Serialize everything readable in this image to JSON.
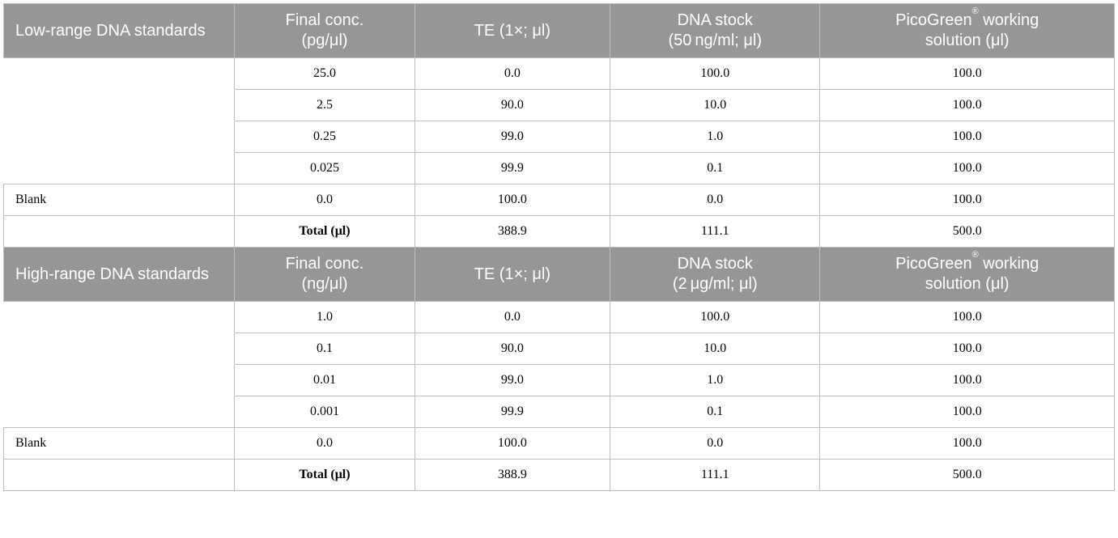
{
  "colors": {
    "header_bg": "#969696",
    "header_text": "#ffffff",
    "body_text": "#000000",
    "border": "#bdbdbd",
    "row_bg": "#ffffff"
  },
  "typography": {
    "header_font": "sans-serif light",
    "header_fontsize_pt": 15,
    "body_font": "serif",
    "body_fontsize_pt": 12
  },
  "column_widths_pct": [
    20.8,
    16.2,
    17.6,
    18.9,
    26.5
  ],
  "blank_label": "Blank",
  "total_label": "Total (μl)",
  "low": {
    "headers": {
      "c1": "Low-range DNA standards",
      "c2_l1": "Final conc.",
      "c2_l2": "(pg/μl)",
      "c3": "TE (1×; μl)",
      "c4_l1": "DNA stock",
      "c4_l2": "(50 ng/ml; μl)",
      "c5_pre": "PicoGreen",
      "c5_post": " working",
      "c5_l2": "solution (μl)"
    },
    "rows": [
      {
        "r0": "",
        "conc": "25.0",
        "te": "0.0",
        "stock": "100.0",
        "pg": "100.0"
      },
      {
        "r0": "",
        "conc": "2.5",
        "te": "90.0",
        "stock": "10.0",
        "pg": "100.0"
      },
      {
        "r0": "",
        "conc": "0.25",
        "te": "99.0",
        "stock": "1.0",
        "pg": "100.0"
      },
      {
        "r0": "",
        "conc": "0.025",
        "te": "99.9",
        "stock": "0.1",
        "pg": "100.0"
      }
    ],
    "blank": {
      "conc": "0.0",
      "te": "100.0",
      "stock": "0.0",
      "pg": "100.0"
    },
    "total": {
      "te": "388.9",
      "stock": "111.1",
      "pg": "500.0"
    }
  },
  "high": {
    "headers": {
      "c1": "High-range DNA standards",
      "c2_l1": "Final conc.",
      "c2_l2": "(ng/μl)",
      "c3": "TE (1×; μl)",
      "c4_l1": "DNA stock",
      "c4_l2": "(2 μg/ml; μl)",
      "c5_pre": "PicoGreen",
      "c5_post": " working",
      "c5_l2": "solution (μl)"
    },
    "rows": [
      {
        "r0": "",
        "conc": "1.0",
        "te": "0.0",
        "stock": "100.0",
        "pg": "100.0"
      },
      {
        "r0": "",
        "conc": "0.1",
        "te": "90.0",
        "stock": "10.0",
        "pg": "100.0"
      },
      {
        "r0": "",
        "conc": "0.01",
        "te": "99.0",
        "stock": "1.0",
        "pg": "100.0"
      },
      {
        "r0": "",
        "conc": "0.001",
        "te": "99.9",
        "stock": "0.1",
        "pg": "100.0"
      }
    ],
    "blank": {
      "conc": "0.0",
      "te": "100.0",
      "stock": "0.0",
      "pg": "100.0"
    },
    "total": {
      "te": "388.9",
      "stock": "111.1",
      "pg": "500.0"
    }
  }
}
